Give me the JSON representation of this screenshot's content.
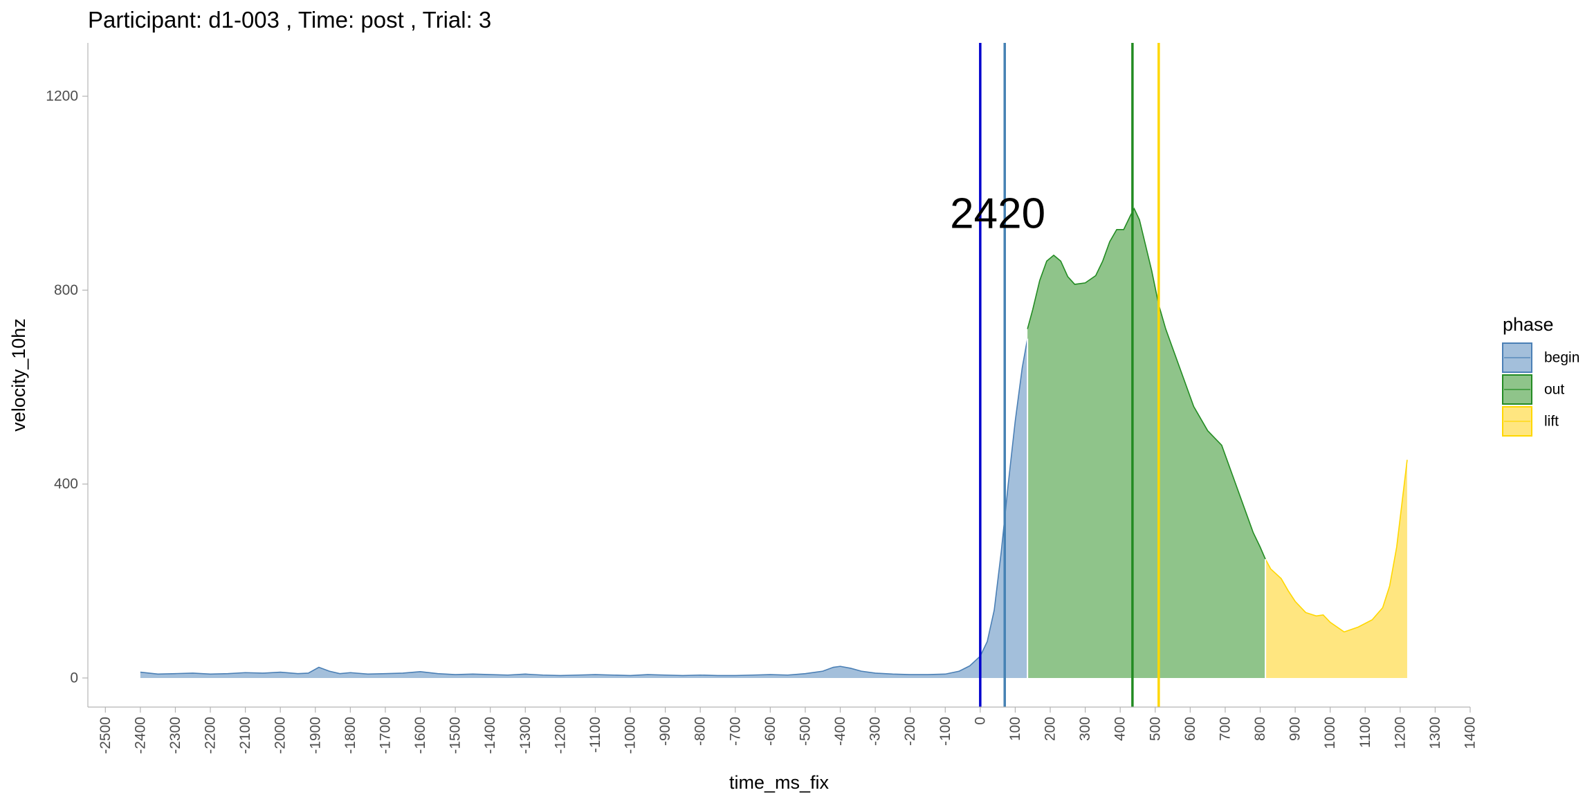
{
  "chart_data": {
    "type": "area",
    "title": "Participant:  d1-003 , Time: post , Trial:  3",
    "xlabel": "time_ms_fix",
    "ylabel": "velocity_10hz",
    "xlim": [
      -2550,
      1400
    ],
    "ylim": [
      -60,
      1310
    ],
    "x_ticks": [
      -2500,
      -2400,
      -2300,
      -2200,
      -2100,
      -2000,
      -1900,
      -1800,
      -1700,
      -1600,
      -1500,
      -1400,
      -1300,
      -1200,
      -1100,
      -1000,
      -900,
      -800,
      -700,
      -600,
      -500,
      -400,
      -300,
      -200,
      -100,
      0,
      100,
      200,
      300,
      400,
      500,
      600,
      700,
      800,
      900,
      1000,
      1100,
      1200,
      1300,
      1400
    ],
    "y_ticks": [
      0,
      400,
      800,
      1200
    ],
    "grid": false,
    "legend": {
      "title": "phase",
      "placement": "right",
      "entries": [
        {
          "label": "begin",
          "fill": "#a3bfdb",
          "stroke": "#4a7fb5"
        },
        {
          "label": "out",
          "fill": "#8fc48a",
          "stroke": "#228b22"
        },
        {
          "label": "lift",
          "fill": "#ffe680",
          "stroke": "#ffd700"
        }
      ]
    },
    "series": [
      {
        "name": "begin",
        "points": [
          [
            -2400,
            12
          ],
          [
            -2350,
            8
          ],
          [
            -2300,
            9
          ],
          [
            -2250,
            10
          ],
          [
            -2200,
            8
          ],
          [
            -2150,
            9
          ],
          [
            -2100,
            11
          ],
          [
            -2050,
            10
          ],
          [
            -2000,
            12
          ],
          [
            -1950,
            9
          ],
          [
            -1920,
            10
          ],
          [
            -1890,
            22
          ],
          [
            -1860,
            14
          ],
          [
            -1830,
            9
          ],
          [
            -1800,
            11
          ],
          [
            -1750,
            8
          ],
          [
            -1700,
            9
          ],
          [
            -1650,
            10
          ],
          [
            -1600,
            13
          ],
          [
            -1550,
            9
          ],
          [
            -1500,
            7
          ],
          [
            -1450,
            8
          ],
          [
            -1400,
            7
          ],
          [
            -1350,
            6
          ],
          [
            -1300,
            8
          ],
          [
            -1250,
            6
          ],
          [
            -1200,
            5
          ],
          [
            -1150,
            6
          ],
          [
            -1100,
            7
          ],
          [
            -1050,
            6
          ],
          [
            -1000,
            5
          ],
          [
            -950,
            7
          ],
          [
            -900,
            6
          ],
          [
            -850,
            5
          ],
          [
            -800,
            6
          ],
          [
            -750,
            5
          ],
          [
            -700,
            5
          ],
          [
            -650,
            6
          ],
          [
            -600,
            7
          ],
          [
            -550,
            6
          ],
          [
            -500,
            9
          ],
          [
            -450,
            14
          ],
          [
            -420,
            22
          ],
          [
            -400,
            24
          ],
          [
            -370,
            20
          ],
          [
            -340,
            14
          ],
          [
            -300,
            10
          ],
          [
            -250,
            8
          ],
          [
            -200,
            7
          ],
          [
            -150,
            7
          ],
          [
            -100,
            8
          ],
          [
            -60,
            14
          ],
          [
            -30,
            25
          ],
          [
            0,
            45
          ],
          [
            20,
            75
          ],
          [
            40,
            140
          ],
          [
            60,
            260
          ],
          [
            80,
            400
          ],
          [
            100,
            530
          ],
          [
            120,
            640
          ],
          [
            135,
            700
          ]
        ]
      },
      {
        "name": "out",
        "points": [
          [
            135,
            720
          ],
          [
            150,
            760
          ],
          [
            170,
            820
          ],
          [
            190,
            860
          ],
          [
            210,
            872
          ],
          [
            230,
            860
          ],
          [
            250,
            828
          ],
          [
            270,
            812
          ],
          [
            300,
            815
          ],
          [
            330,
            830
          ],
          [
            350,
            860
          ],
          [
            370,
            900
          ],
          [
            390,
            925
          ],
          [
            410,
            925
          ],
          [
            430,
            955
          ],
          [
            440,
            968
          ],
          [
            455,
            945
          ],
          [
            470,
            900
          ],
          [
            490,
            840
          ],
          [
            510,
            770
          ],
          [
            530,
            720
          ],
          [
            550,
            680
          ],
          [
            580,
            620
          ],
          [
            610,
            560
          ],
          [
            650,
            510
          ],
          [
            690,
            480
          ],
          [
            720,
            420
          ],
          [
            760,
            340
          ],
          [
            780,
            300
          ],
          [
            800,
            270
          ],
          [
            815,
            245
          ]
        ]
      },
      {
        "name": "lift",
        "points": [
          [
            815,
            245
          ],
          [
            830,
            225
          ],
          [
            860,
            205
          ],
          [
            880,
            180
          ],
          [
            900,
            158
          ],
          [
            930,
            135
          ],
          [
            960,
            128
          ],
          [
            980,
            130
          ],
          [
            1000,
            115
          ],
          [
            1040,
            95
          ],
          [
            1080,
            105
          ],
          [
            1120,
            120
          ],
          [
            1150,
            145
          ],
          [
            1170,
            190
          ],
          [
            1190,
            270
          ],
          [
            1205,
            360
          ],
          [
            1220,
            450
          ]
        ]
      }
    ],
    "vlines": [
      {
        "x": 0,
        "color": "#0000cd"
      },
      {
        "x": 70,
        "color": "#4682b4"
      },
      {
        "x": 435,
        "color": "#228b22"
      },
      {
        "x": 510,
        "color": "#ffd700"
      }
    ],
    "annotation": {
      "text": "2420",
      "x": 50,
      "y": 960
    }
  }
}
